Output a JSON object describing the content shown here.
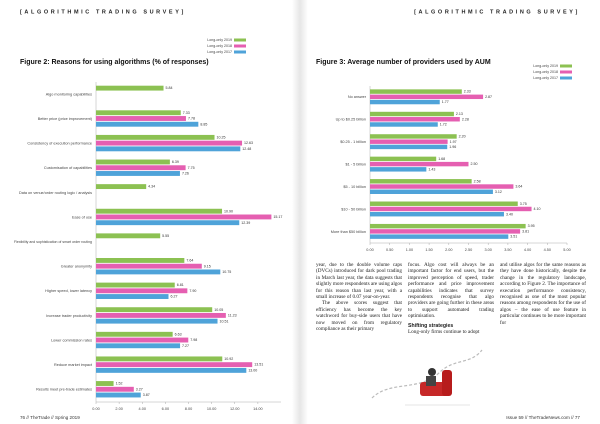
{
  "page": {
    "header_left": "[ALGORITHMIC TRADING SURVEY]",
    "header_right": "[ALGORITHMIC TRADING SURVEY]",
    "footer_left": "76 // TheTrade // Spring 2019",
    "footer_right": "Issue 59 // TheTradeNews.com // 77",
    "columns": [
      {
        "paragraphs": [
          "year, due to the double volume caps (DVCs) introduced for dark pool trading in March last year, the data suggests that slightly more respondents are using algos for this reason than last year, with a small increase of 0.07 year-on-year.",
          "The above scores suggest that efficiency has become the key watchword for buy-side users that have now moved on from regulatory compliance as their primary"
        ]
      },
      {
        "paragraphs": [
          "focus. Algo cost will always be an important factor for end users, but the improved perception of speed, trader performance and price improvement capabilities indicates that survey respondents recognise that algo providers are going further in these areas to support automated trading optimisation."
        ],
        "subheading": "Shifting strategies",
        "paragraphs_after": [
          "Long-only firms continue to adopt"
        ]
      },
      {
        "paragraphs": [
          "and utilise algos for the same reasons as they have done historically, despite the change in the regulatory landscape, according to Figure 2. The importance of execution performance consistency, recognised as one of the most popular reasons among respondents for the use of algos – the ease of use feature in particular continues to be more important for"
        ]
      }
    ]
  },
  "chart_data": [
    {
      "type": "bar",
      "orientation": "horizontal",
      "title": "Figure 2: Reasons for using algorithms (% of responses)",
      "categories": [
        "Algo monitoring capabilities",
        "Better price (price improvement)",
        "Consistency of execution performance",
        "Customisation of capabilities",
        "Data on venue/order routing logic / analysis",
        "Ease of use",
        "Flexibility and sophistication of smart order routing",
        "Greater anonymity",
        "Higher speed, lower latency",
        "Increase trader productivity",
        "Lower commission rates",
        "Reduce market impact",
        "Results meet pre-trade estimates"
      ],
      "series": [
        {
          "name": "Long-only 2019",
          "color": "#8cc152",
          "values": [
            5.84,
            7.33,
            10.25,
            6.39,
            4.34,
            10.9,
            5.55,
            7.64,
            6.81,
            10.05,
            6.63,
            10.92,
            1.52
          ],
          "value_labels": [
            "5.84",
            "7.33",
            "10.25",
            "6.39",
            "4.34",
            "10.90",
            "5.55",
            "7.64",
            "6.81",
            "10.05",
            "6.63",
            "10.92",
            "1.52"
          ]
        },
        {
          "name": "Long-only 2018",
          "color": "#e55fb1",
          "values": [
            null,
            7.78,
            12.63,
            7.75,
            null,
            15.17,
            null,
            9.15,
            7.9,
            11.23,
            7.98,
            13.51,
            3.27
          ],
          "value_labels": [
            null,
            "7.78",
            "12.63",
            "7.75",
            null,
            "15.17",
            null,
            "9.15",
            "7.90",
            "11.23",
            "7.98",
            "13.51",
            "3.27"
          ]
        },
        {
          "name": "Long-only 2017",
          "color": "#4fa3d9",
          "values": [
            null,
            8.85,
            12.48,
            7.26,
            null,
            12.39,
            null,
            10.75,
            6.27,
            10.51,
            7.27,
            13,
            3.87
          ],
          "value_labels": [
            null,
            "8.85",
            "12.48",
            "7.26",
            null,
            "12.39",
            null,
            "10.75",
            "6.27",
            "10.51",
            "7.27",
            "13.00",
            "3.87"
          ]
        }
      ],
      "xlim": [
        0,
        16
      ],
      "xticks": [
        {
          "value": 0,
          "label": "0.00"
        },
        {
          "value": 2,
          "label": "2.00"
        },
        {
          "value": 4,
          "label": "4.00"
        },
        {
          "value": 6,
          "label": "6.00"
        },
        {
          "value": 8,
          "label": "8.00"
        },
        {
          "value": 10,
          "label": "10.00"
        },
        {
          "value": 12,
          "label": "12.00"
        },
        {
          "value": 14,
          "label": "14.00"
        }
      ],
      "legend": "top-right"
    },
    {
      "type": "bar",
      "orientation": "horizontal",
      "title": "Figure 3: Average number of providers used by AUM",
      "categories": [
        "No answer",
        "Up to $0.25 billion",
        "$0.25 - 1 billion",
        "$1 - 5 billion",
        "$5 - 10 billion",
        "$10 - 50 billion",
        "More than $50 billion"
      ],
      "series": [
        {
          "name": "Long-only 2019",
          "color": "#8cc152",
          "values": [
            2.33,
            2.13,
            2.2,
            1.68,
            2.58,
            3.75,
            3.95
          ],
          "value_labels": [
            "2.33",
            "2.13",
            "2.20",
            "1.68",
            "2.58",
            "3.75",
            "3.95"
          ]
        },
        {
          "name": "Long-only 2018",
          "color": "#e55fb1",
          "values": [
            2.87,
            2.28,
            1.97,
            2.5,
            3.64,
            4.1,
            3.81
          ],
          "value_labels": [
            "2.87",
            "2.28",
            "1.97",
            "2.50",
            "3.64",
            "4.10",
            "3.81"
          ]
        },
        {
          "name": "Long-only 2017",
          "color": "#4fa3d9",
          "values": [
            1.77,
            1.72,
            1.96,
            1.43,
            3.12,
            3.4,
            3.51
          ],
          "value_labels": [
            "1.77",
            "1.72",
            "1.96",
            "1.43",
            "3.12",
            "3.40",
            "3.51"
          ]
        }
      ],
      "xlim": [
        0,
        5
      ],
      "xticks": [
        {
          "value": 0,
          "label": "0.00"
        },
        {
          "value": 0.5,
          "label": "0.50"
        },
        {
          "value": 1,
          "label": "1.00"
        },
        {
          "value": 1.5,
          "label": "1.50"
        },
        {
          "value": 2,
          "label": "2.00"
        },
        {
          "value": 2.5,
          "label": "2.50"
        },
        {
          "value": 3,
          "label": "3.00"
        },
        {
          "value": 3.5,
          "label": "3.50"
        },
        {
          "value": 4,
          "label": "4.00"
        },
        {
          "value": 4.5,
          "label": "4.50"
        },
        {
          "value": 5,
          "label": "5.00"
        }
      ],
      "legend": "top-right"
    }
  ]
}
